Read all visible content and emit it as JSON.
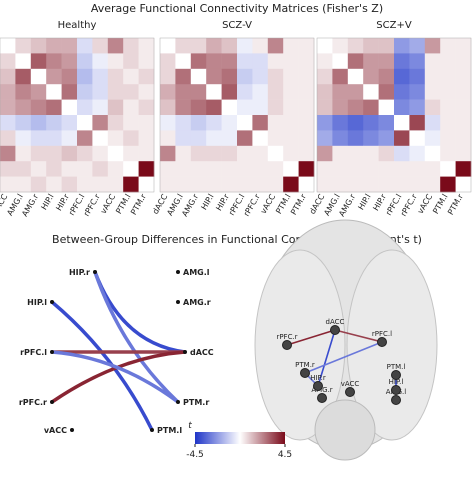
{
  "figure": {
    "title_top": "Average Functional Connectivity Matrices (Fisher's Z)",
    "title_bottom": "Between-Group Differences in Functional Connectivity (Student's t)",
    "regions": [
      "dACC",
      "AMG.l",
      "AMG.r",
      "HIP.l",
      "HIP.r",
      "rPFC.l",
      "rPFC.r",
      "vACC",
      "PTM.l",
      "PTM.r"
    ],
    "zlim": [
      -0.6,
      0.6
    ],
    "matrices": [
      {
        "name": "Healthy",
        "values": [
          [
            null,
            0.1,
            0.15,
            0.2,
            0.2,
            -0.1,
            0.1,
            0.3,
            0.1,
            0.05
          ],
          [
            0.1,
            null,
            0.4,
            0.3,
            0.25,
            -0.15,
            -0.05,
            0.05,
            0.1,
            0.05
          ],
          [
            0.15,
            0.4,
            null,
            0.25,
            0.3,
            -0.2,
            -0.1,
            0.1,
            0.05,
            0.1
          ],
          [
            0.2,
            0.3,
            0.25,
            null,
            0.35,
            -0.15,
            -0.1,
            0.1,
            0.1,
            0.05
          ],
          [
            0.2,
            0.25,
            0.3,
            0.35,
            null,
            -0.1,
            -0.05,
            0.15,
            0.05,
            0.1
          ],
          [
            -0.1,
            -0.15,
            -0.2,
            -0.15,
            -0.1,
            null,
            0.3,
            0.1,
            0.05,
            0.05
          ],
          [
            0.1,
            -0.05,
            -0.1,
            -0.1,
            -0.05,
            0.3,
            null,
            0.05,
            0.1,
            0.05
          ],
          [
            0.3,
            0.05,
            0.1,
            0.1,
            0.15,
            0.1,
            0.05,
            null,
            0.05,
            0.05
          ],
          [
            0.1,
            0.1,
            0.05,
            0.1,
            0.05,
            0.05,
            0.1,
            0.05,
            null,
            0.6
          ],
          [
            0.05,
            0.05,
            0.1,
            0.05,
            0.1,
            0.05,
            0.05,
            0.05,
            0.6,
            null
          ]
        ]
      },
      {
        "name": "SCZ-V",
        "values": [
          [
            null,
            0.1,
            0.1,
            0.2,
            0.15,
            -0.05,
            0.05,
            0.3,
            0.05,
            0.05
          ],
          [
            0.1,
            null,
            0.35,
            0.3,
            0.3,
            -0.1,
            -0.1,
            0.05,
            0.05,
            0.05
          ],
          [
            0.1,
            0.35,
            null,
            0.3,
            0.35,
            -0.15,
            -0.1,
            0.1,
            0.05,
            0.05
          ],
          [
            0.2,
            0.3,
            0.3,
            null,
            0.4,
            -0.1,
            -0.05,
            0.1,
            0.05,
            0.05
          ],
          [
            0.15,
            0.3,
            0.35,
            0.4,
            null,
            -0.05,
            -0.05,
            0.1,
            0.05,
            0.05
          ],
          [
            -0.05,
            -0.1,
            -0.15,
            -0.1,
            -0.05,
            null,
            0.35,
            0.05,
            0.05,
            0.05
          ],
          [
            0.05,
            -0.1,
            -0.1,
            -0.05,
            -0.05,
            0.35,
            null,
            0.05,
            0.05,
            0.05
          ],
          [
            0.3,
            0.05,
            0.1,
            0.1,
            0.1,
            0.05,
            0.05,
            null,
            0.05,
            0.05
          ],
          [
            0.05,
            0.05,
            0.05,
            0.05,
            0.05,
            0.05,
            0.05,
            0.05,
            null,
            0.6
          ],
          [
            0.05,
            0.05,
            0.05,
            0.05,
            0.05,
            0.05,
            0.05,
            0.05,
            0.6,
            null
          ]
        ]
      },
      {
        "name": "SCZ+V",
        "values": [
          [
            null,
            0.05,
            0.1,
            0.15,
            0.15,
            -0.3,
            -0.25,
            0.25,
            0.05,
            0.05
          ],
          [
            0.05,
            null,
            0.35,
            0.25,
            0.25,
            -0.4,
            -0.35,
            0.05,
            0.05,
            0.05
          ],
          [
            0.1,
            0.35,
            null,
            0.25,
            0.3,
            -0.45,
            -0.4,
            0.05,
            0.05,
            0.05
          ],
          [
            0.15,
            0.25,
            0.25,
            null,
            0.35,
            -0.4,
            -0.35,
            0.05,
            0.05,
            0.05
          ],
          [
            0.15,
            0.25,
            0.3,
            0.35,
            null,
            -0.35,
            -0.3,
            0.1,
            0.05,
            0.05
          ],
          [
            -0.3,
            -0.4,
            -0.45,
            -0.4,
            -0.35,
            null,
            0.45,
            -0.1,
            0.05,
            0.05
          ],
          [
            -0.25,
            -0.35,
            -0.4,
            -0.35,
            -0.3,
            0.45,
            null,
            -0.05,
            0.05,
            0.05
          ],
          [
            0.25,
            0.05,
            0.05,
            0.05,
            0.1,
            -0.1,
            -0.05,
            null,
            0.05,
            0.05
          ],
          [
            0.05,
            0.05,
            0.05,
            0.05,
            0.05,
            0.05,
            0.05,
            0.05,
            null,
            0.6
          ],
          [
            0.05,
            0.05,
            0.05,
            0.05,
            0.05,
            0.05,
            0.05,
            0.05,
            0.6,
            null
          ]
        ]
      }
    ],
    "edges": [
      {
        "source": "HIP.r",
        "target": "dACC",
        "t": -4.0
      },
      {
        "source": "HIP.r",
        "target": "PTM.r",
        "t": -3.0
      },
      {
        "source": "HIP.l",
        "target": "PTM.l",
        "t": -4.0
      },
      {
        "source": "rPFC.l",
        "target": "dACC",
        "t": 3.5
      },
      {
        "source": "rPFC.r",
        "target": "dACC",
        "t": 4.0
      },
      {
        "source": "rPFC.l",
        "target": "PTM.r",
        "t": -3.0
      }
    ],
    "colorbar": {
      "label": "t",
      "lim": [
        -4.5,
        4.5
      ],
      "ticks": [
        -4.5,
        4.5
      ]
    }
  }
}
